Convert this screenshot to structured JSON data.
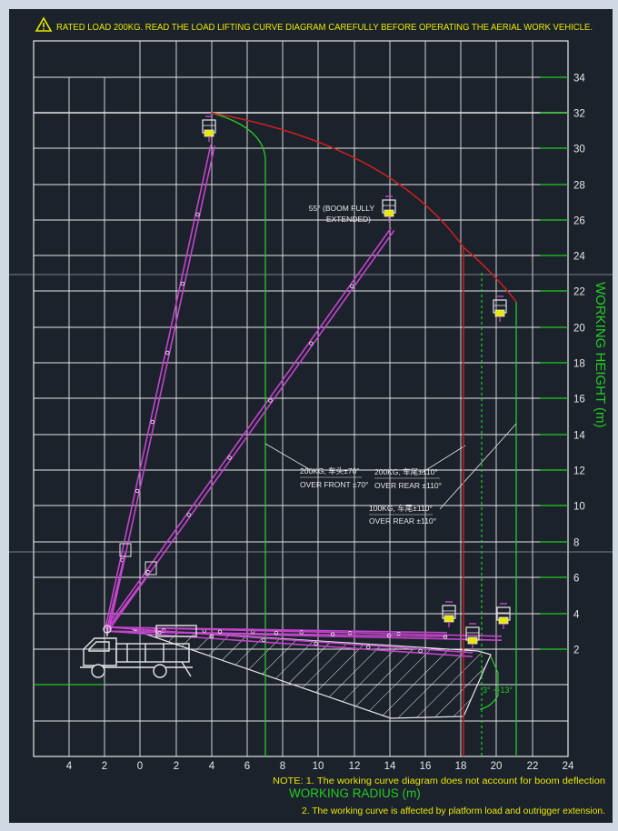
{
  "warning": {
    "icon": "warning-triangle-icon",
    "text": "RATED LOAD 200KG. READ THE LOAD LIFTING CURVE DIAGRAM CAREFULLY BEFORE OPERATING THE AERIAL WORK VEHICLE."
  },
  "axes": {
    "y_label": "WORKING  HEIGHT (m)",
    "x_label": "WORKING RADIUS (m)",
    "y_ticks": [
      "34",
      "32",
      "30",
      "28",
      "26",
      "24",
      "22",
      "20",
      "18",
      "16",
      "14",
      "12",
      "10",
      "8",
      "6",
      "4",
      "2"
    ],
    "x_ticks": [
      "4",
      "2",
      "0",
      "2",
      "4",
      "6",
      "8",
      "10",
      "12",
      "14",
      "16",
      "18",
      "20",
      "22",
      "24"
    ]
  },
  "annotations": {
    "boom_angle_line1": "55° (BOOM FULLY",
    "boom_angle_line2": "EXTENDED)",
    "front_line1": "200KG, 车头±70°",
    "front_line2": "OVER FRONT ±70°",
    "rear200_line1": "200KG, 车尾±110°",
    "rear200_line2": "OVER REAR ±110°",
    "rear100_line1": "100KG, 车尾±110°",
    "rear100_line2": "OVER REAR ±110°",
    "tilt": "3° ~-13°"
  },
  "notes": {
    "note1": "NOTE: 1. The working curve diagram does not account for boom deflection",
    "note2": "2. The working curve is affected by platform load and outrigger extension."
  },
  "colors": {
    "background": "#1c222c",
    "grid": "#e6e6e6",
    "boom": "#c444cc",
    "envelope": "#c82020",
    "green": "#22cc22",
    "yellow": "#e8e800",
    "text": "#e6e6e6"
  }
}
